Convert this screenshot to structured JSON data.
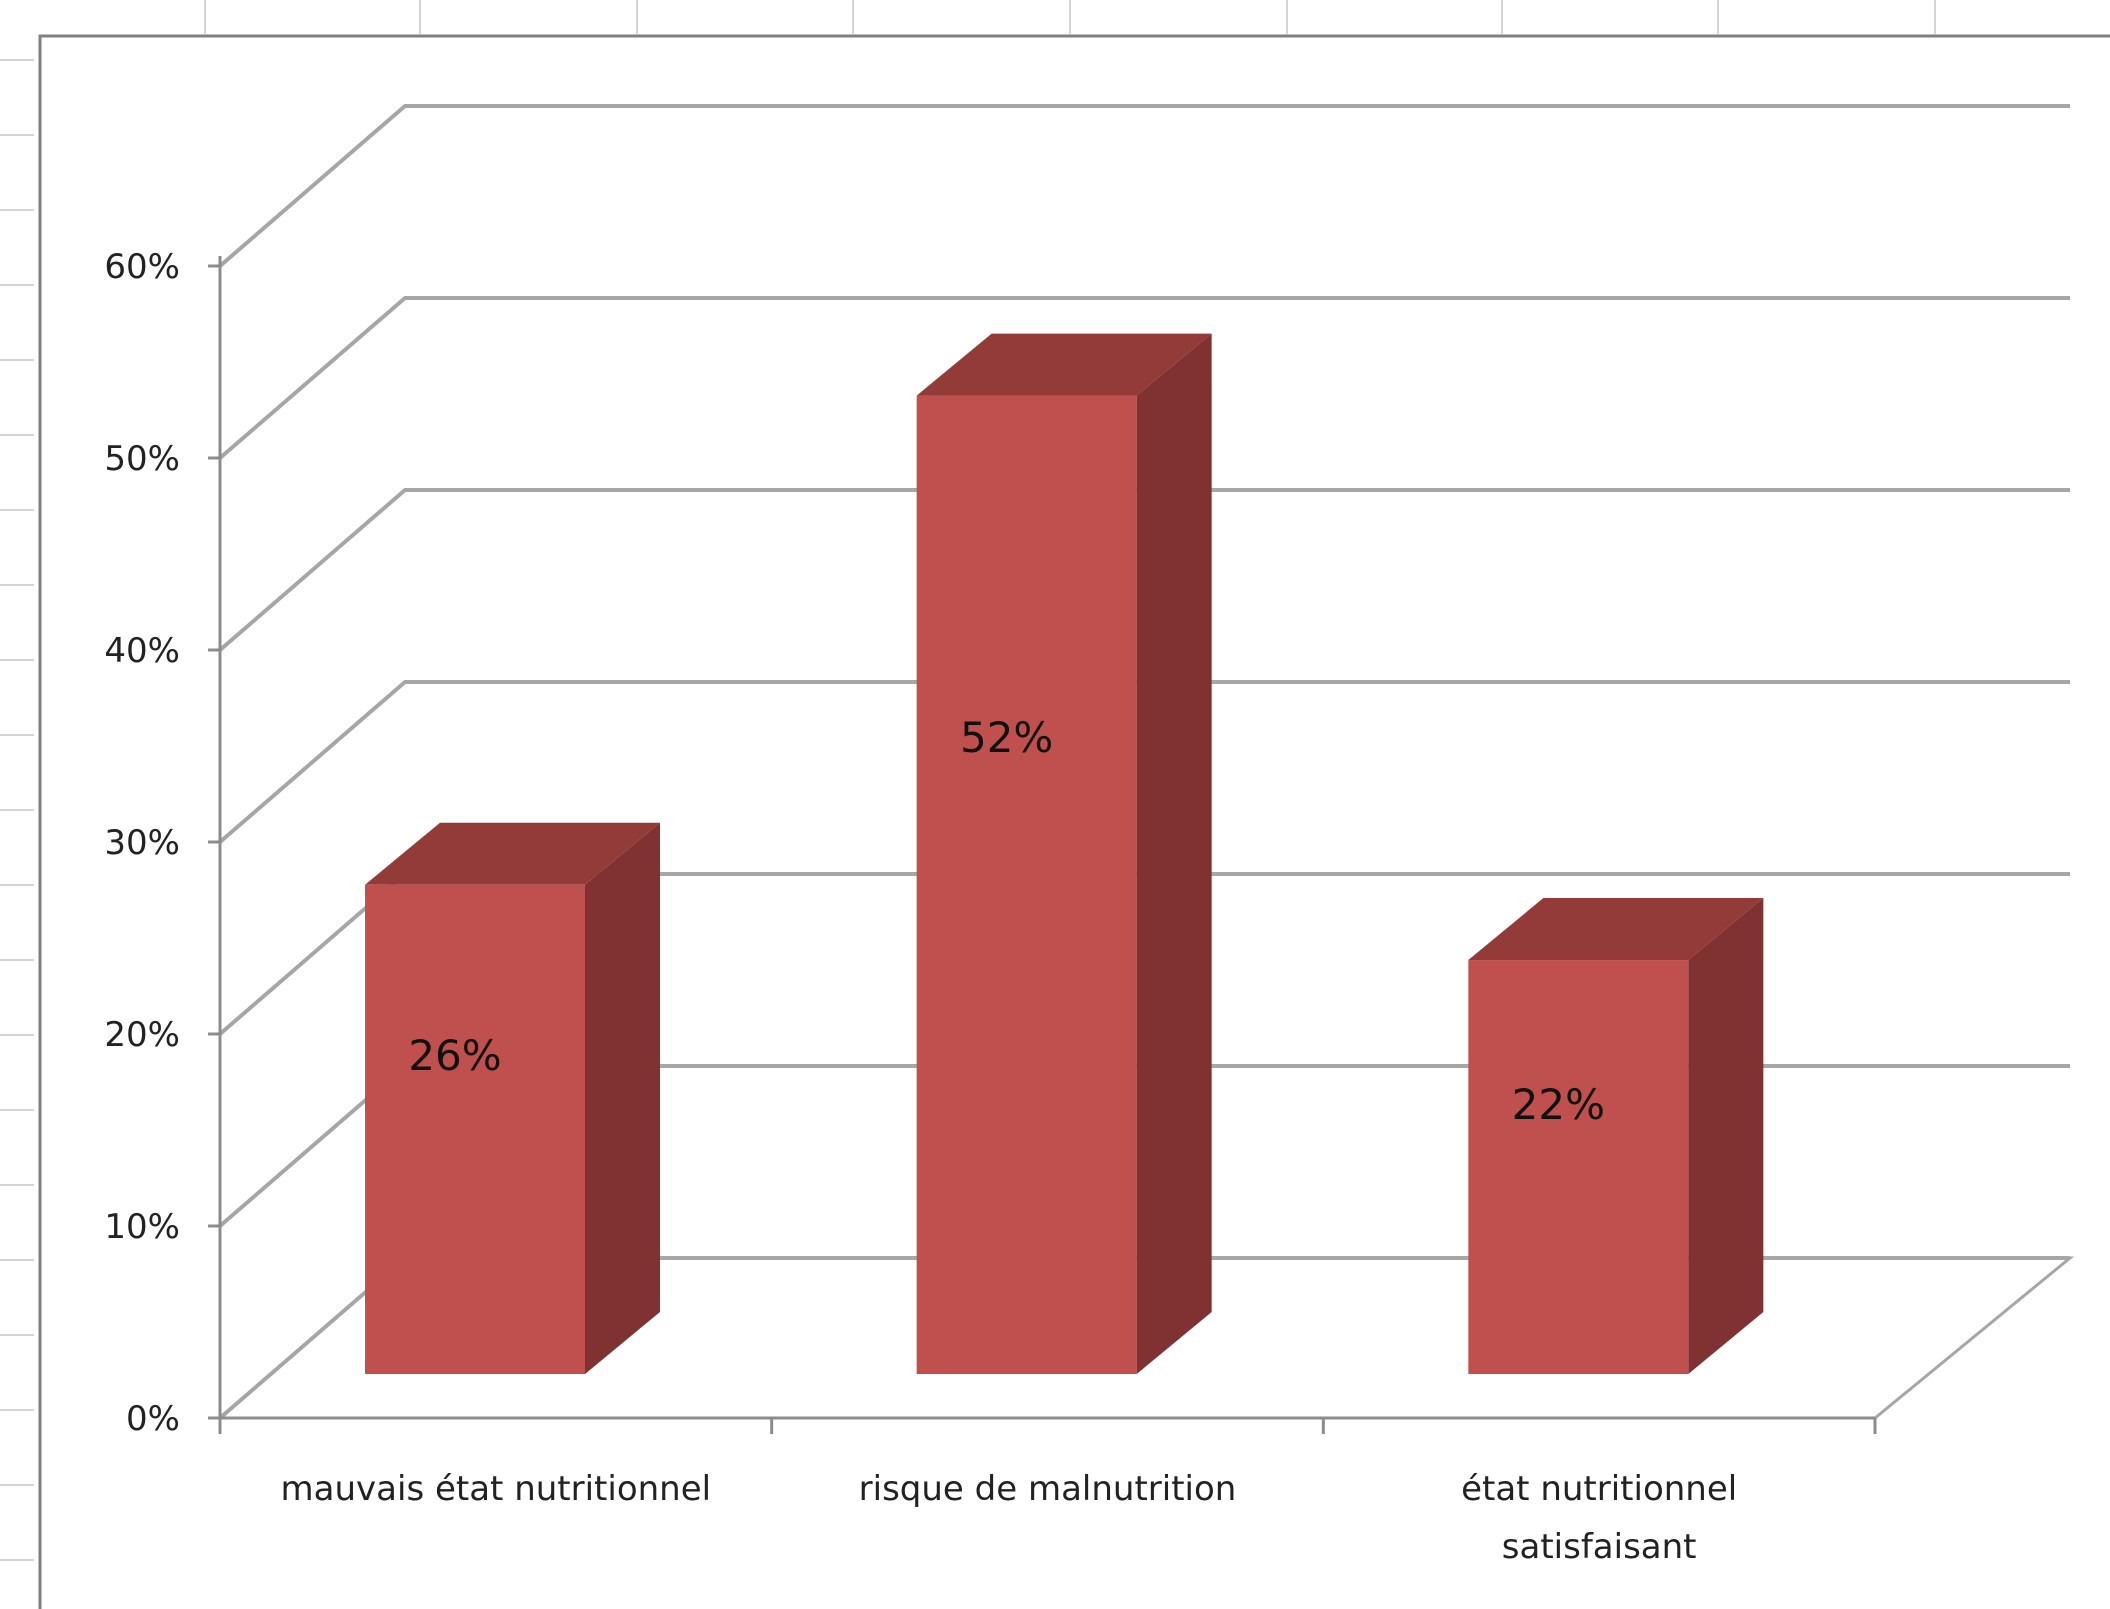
{
  "chart_data": {
    "type": "bar",
    "style": "3d-column",
    "categories": [
      [
        "mauvais état nutritionnel"
      ],
      [
        "risque de malnutrition"
      ],
      [
        "état nutritionnel",
        "satisfaisant"
      ]
    ],
    "values": [
      26,
      52,
      22
    ],
    "data_labels": [
      "26%",
      "52%",
      "22%"
    ],
    "y_ticks": [
      "0%",
      "10%",
      "20%",
      "30%",
      "40%",
      "50%",
      "60%"
    ],
    "ylim": [
      0,
      60
    ],
    "grid": true,
    "legend": "none",
    "title": "",
    "xlabel": "",
    "ylabel": "",
    "colors": {
      "bar_front": "#c0504d",
      "bar_top": "#933b38",
      "bar_side": "#7f3231",
      "gridline": "#a6a6a6"
    }
  }
}
